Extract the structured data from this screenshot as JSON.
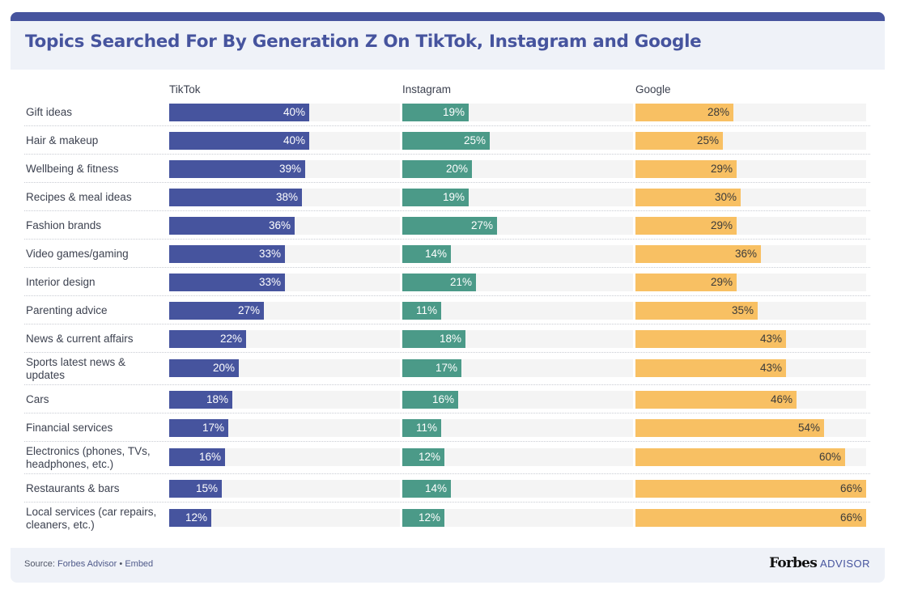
{
  "header": {
    "title": "Topics Searched For By Generation Z On TikTok, Instagram and Google"
  },
  "colors": {
    "accent": "#46549e",
    "tiktok": "#46549e",
    "instagram": "#4b9a88",
    "google": "#f8c063",
    "track": "#f4f4f4"
  },
  "chart_data": {
    "type": "bar",
    "orientation": "horizontal",
    "title": "Topics Searched For By Generation Z On TikTok, Instagram and Google",
    "xlabel": "",
    "ylabel": "",
    "value_format": "percent",
    "xlim": [
      0,
      66
    ],
    "grid": false,
    "categories": [
      "Gift ideas",
      "Hair & makeup",
      "Wellbeing & fitness",
      "Recipes & meal ideas",
      "Fashion brands",
      "Video games/gaming",
      "Interior design",
      "Parenting advice",
      "News & current affairs",
      "Sports latest news & updates",
      "Cars",
      "Financial services",
      "Electronics (phones, TVs, headphones, etc.)",
      "Restaurants & bars",
      "Local services (car repairs, cleaners, etc.)"
    ],
    "series": [
      {
        "name": "TikTok",
        "key": "tiktok",
        "values": [
          40,
          40,
          39,
          38,
          36,
          33,
          33,
          27,
          22,
          20,
          18,
          17,
          16,
          15,
          12
        ]
      },
      {
        "name": "Instagram",
        "key": "instagram",
        "values": [
          19,
          25,
          20,
          19,
          27,
          14,
          21,
          11,
          18,
          17,
          16,
          11,
          12,
          14,
          12
        ]
      },
      {
        "name": "Google",
        "key": "google",
        "values": [
          28,
          25,
          29,
          30,
          29,
          36,
          29,
          35,
          43,
          43,
          46,
          54,
          60,
          66,
          66
        ]
      }
    ]
  },
  "footer": {
    "source_prefix": "Source: ",
    "source_link": "Forbes Advisor",
    "separator": " • ",
    "embed_link": "Embed",
    "brand_name": "Forbes",
    "brand_suffix": "ADVISOR"
  }
}
